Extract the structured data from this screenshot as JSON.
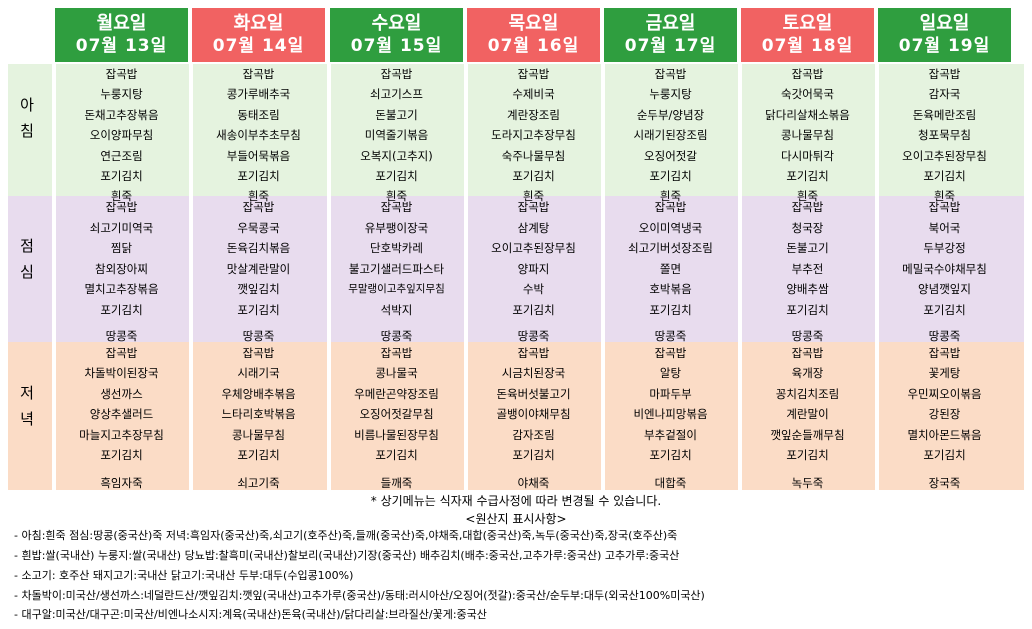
{
  "days": [
    {
      "day": "월요일",
      "date": "07월 13일",
      "color": "#2f9e3f",
      "breakfast": [
        "잡곡밥",
        "누룽지탕",
        "돈채고추장볶음",
        "오이양파무침",
        "연근조림",
        "포기김치",
        "흰죽"
      ],
      "lunch": [
        "잡곡밥",
        "쇠고기미역국",
        "찜닭",
        "참외장아찌",
        "멸치고추장볶음",
        "포기김치",
        "땅콩죽"
      ],
      "dinner": [
        "잡곡밥",
        "차돌박이된장국",
        "생선까스",
        "양상추샐러드",
        "마늘지고추장무침",
        "포기김치",
        "흑임자죽"
      ]
    },
    {
      "day": "화요일",
      "date": "07월 14일",
      "color": "#f16262",
      "breakfast": [
        "잡곡밥",
        "콩가루배추국",
        "동태조림",
        "새송이부추초무침",
        "부들어묵볶음",
        "포기김치",
        "흰죽"
      ],
      "lunch": [
        "잡곡밥",
        "우묵콩국",
        "돈육김치볶음",
        "맛살계란말이",
        "깻잎김치",
        "포기김치",
        "땅콩죽"
      ],
      "dinner": [
        "잡곡밥",
        "시래기국",
        "우체앙배추볶음",
        "느타리호박볶음",
        "콩나물무침",
        "포기김치",
        "쇠고기죽"
      ]
    },
    {
      "day": "수요일",
      "date": "07월 15일",
      "color": "#2f9e3f",
      "breakfast": [
        "잡곡밥",
        "쇠고기스프",
        "돈불고기",
        "미역줄기볶음",
        "오복지(고추지)",
        "포기김치",
        "흰죽"
      ],
      "lunch": [
        "잡곡밥",
        "유부팽이장국",
        "단호박카레",
        "불고기샐러드파스타",
        "무말랭이고추잎지무침",
        "석박지",
        "땅콩죽"
      ],
      "dinner": [
        "잡곡밥",
        "콩나물국",
        "우메란곤약장조림",
        "오징어젓갈무침",
        "비름나물된장무침",
        "포기김치",
        "들깨죽"
      ]
    },
    {
      "day": "목요일",
      "date": "07월 16일",
      "color": "#f16262",
      "breakfast": [
        "잡곡밥",
        "수제비국",
        "계란장조림",
        "도라지고추장무침",
        "숙주나물무침",
        "포기김치",
        "흰죽"
      ],
      "lunch": [
        "잡곡밥",
        "삼계탕",
        "오이고추된장무침",
        "양파지",
        "수박",
        "포기김치",
        "땅콩죽"
      ],
      "dinner": [
        "잡곡밥",
        "시금치된장국",
        "돈육버섯불고기",
        "골뱅이야채무침",
        "감자조림",
        "포기김치",
        "야채죽"
      ]
    },
    {
      "day": "금요일",
      "date": "07월 17일",
      "color": "#2f9e3f",
      "breakfast": [
        "잡곡밥",
        "누룽지탕",
        "순두부/양념장",
        "시래기된장조림",
        "오징어젓갈",
        "포기김치",
        "흰죽"
      ],
      "lunch": [
        "잡곡밥",
        "오이미역냉국",
        "쇠고기버섯장조림",
        "쫄면",
        "호박볶음",
        "포기김치",
        "땅콩죽"
      ],
      "dinner": [
        "잡곡밥",
        "알탕",
        "마파두부",
        "비엔나피망볶음",
        "부추겉절이",
        "포기김치",
        "대합죽"
      ]
    },
    {
      "day": "토요일",
      "date": "07월 18일",
      "color": "#f16262",
      "breakfast": [
        "잡곡밥",
        "숙갓어묵국",
        "닭다리살채소볶음",
        "콩나물무침",
        "다시마튀각",
        "포기김치",
        "흰죽"
      ],
      "lunch": [
        "잡곡밥",
        "청국장",
        "돈불고기",
        "부추전",
        "양배추쌈",
        "포기김치",
        "땅콩죽"
      ],
      "dinner": [
        "잡곡밥",
        "육개장",
        "꽁치김치조림",
        "계란말이",
        "깻잎순들깨무침",
        "포기김치",
        "녹두죽"
      ]
    },
    {
      "day": "일요일",
      "date": "07월 19일",
      "color": "#2f9e3f",
      "breakfast": [
        "잡곡밥",
        "감자국",
        "돈육메란조림",
        "청포묵무침",
        "오이고추된장무침",
        "포기김치",
        "흰죽"
      ],
      "lunch": [
        "잡곡밥",
        "북어국",
        "두부강정",
        "메밀국수야채무침",
        "양념깻잎지",
        "포기김치",
        "땅콩죽"
      ],
      "dinner": [
        "잡곡밥",
        "꽃게탕",
        "우민찌오이볶음",
        "강된장",
        "멸치아몬드볶음",
        "포기김치",
        "장국죽"
      ]
    }
  ],
  "meals": {
    "breakfast": "아\n침",
    "lunch": "점\n심",
    "dinner": "저\n녁"
  },
  "note": "* 상기메뉴는 식자재 수급사정에 따라 변경될 수 있습니다.",
  "origin_title": "<원산지 표시사항>",
  "origin_lines": [
    "-  아침:흰죽 점심:땅콩(중국산)죽  저녁:흑임자(중국산)죽,쇠고기(호주산)죽,들깨(중국산)죽,야채죽,대합(중국산)죽,녹두(중국산)죽,장국(호주산)죽",
    "-  흰밥:쌀(국내산)  누룽지:쌀(국내산)  당뇨밥:찰흑미(국내산)찰보리(국내산)기장(중국산)  배추김치(배추:중국산,고추가루:중국산)  고추가루:중국산",
    "-  소고기:  호주산    돼지고기:국내산    닭고기:국내산    두부:대두(수입콩100%)",
    "-  차돌박이:미국산/생선까스:네덜란드산/깻잎김치:깻잎(국내산)고추가루(중국산)/동태:러시아산/오징어(젓갈):중국산/순두부:대두(외국산100%미국산)",
    "-  대구알:미국산/대구곤:미국산/비엔나소시지:계육(국내산)돈육(국내산)/닭다리살:브라질산/꽃게:중국산"
  ]
}
